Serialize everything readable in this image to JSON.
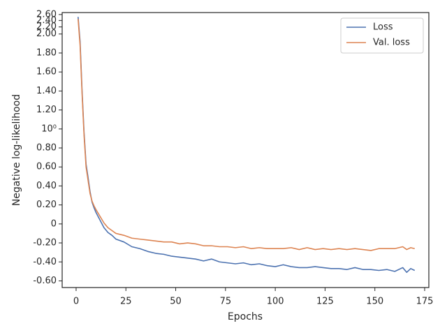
{
  "chart_data": {
    "type": "line",
    "xlabel": "Epochs",
    "ylabel": "Negative log-likelihood",
    "x": [
      1,
      2,
      3,
      4,
      5,
      6,
      7,
      8,
      9,
      10,
      12,
      14,
      16,
      18,
      20,
      24,
      28,
      32,
      36,
      40,
      44,
      48,
      52,
      56,
      60,
      64,
      68,
      72,
      76,
      80,
      84,
      88,
      92,
      96,
      100,
      104,
      108,
      112,
      116,
      120,
      124,
      128,
      132,
      136,
      140,
      144,
      148,
      152,
      156,
      160,
      164,
      166,
      168,
      170
    ],
    "series": [
      {
        "name": "Loss",
        "color": "#4c72b0",
        "values": [
          2.52,
          1.92,
          1.4,
          0.96,
          0.63,
          0.49,
          0.34,
          0.23,
          0.17,
          0.12,
          0.04,
          -0.04,
          -0.09,
          -0.12,
          -0.16,
          -0.19,
          -0.24,
          -0.26,
          -0.29,
          -0.31,
          -0.32,
          -0.34,
          -0.35,
          -0.36,
          -0.37,
          -0.39,
          -0.37,
          -0.4,
          -0.41,
          -0.42,
          -0.41,
          -0.43,
          -0.42,
          -0.44,
          -0.45,
          -0.43,
          -0.45,
          -0.46,
          -0.46,
          -0.45,
          -0.46,
          -0.47,
          -0.47,
          -0.48,
          -0.46,
          -0.48,
          -0.48,
          -0.49,
          -0.48,
          -0.5,
          -0.46,
          -0.51,
          -0.47,
          -0.49
        ]
      },
      {
        "name": "Val. loss",
        "color": "#dd8452",
        "values": [
          2.45,
          1.88,
          1.37,
          0.93,
          0.6,
          0.46,
          0.32,
          0.24,
          0.19,
          0.15,
          0.08,
          0.01,
          -0.04,
          -0.07,
          -0.1,
          -0.12,
          -0.15,
          -0.16,
          -0.17,
          -0.18,
          -0.19,
          -0.19,
          -0.21,
          -0.2,
          -0.21,
          -0.23,
          -0.23,
          -0.24,
          -0.24,
          -0.25,
          -0.24,
          -0.26,
          -0.25,
          -0.26,
          -0.26,
          -0.26,
          -0.25,
          -0.27,
          -0.25,
          -0.27,
          -0.26,
          -0.27,
          -0.26,
          -0.27,
          -0.26,
          -0.27,
          -0.28,
          -0.26,
          -0.26,
          -0.26,
          -0.24,
          -0.27,
          -0.25,
          -0.26
        ]
      }
    ],
    "xlim": [
      -7.0,
      177.1
    ],
    "xticks": [
      0,
      25,
      50,
      75,
      100,
      125,
      150,
      175
    ],
    "ylim": [
      -0.67,
      2.67
    ],
    "yscale": "symlog",
    "linthresh": 2,
    "linscale": 1,
    "yticks": [
      {
        "value": -0.6,
        "label": "-0.60"
      },
      {
        "value": -0.4,
        "label": "-0.40"
      },
      {
        "value": -0.2,
        "label": "-0.20"
      },
      0,
      {
        "value": 0.2,
        "label": "0.20"
      },
      {
        "value": 0.4,
        "label": "0.40"
      },
      {
        "value": 0.6,
        "label": "0.60"
      },
      {
        "value": 0.8,
        "label": "0.80"
      },
      {
        "value": 1,
        "label": "10⁰"
      },
      {
        "value": 1.2,
        "label": "1.20"
      },
      {
        "value": 1.4,
        "label": "1.40"
      },
      {
        "value": 1.6,
        "label": "1.60"
      },
      {
        "value": 1.8,
        "label": "1.80"
      },
      {
        "value": 2,
        "label": "2.00"
      },
      {
        "value": 2.2,
        "label": "2.20"
      },
      {
        "value": 2.4,
        "label": "2.40"
      },
      {
        "value": 2.6,
        "label": "2.60"
      }
    ],
    "grid": false,
    "legend": "upper right"
  }
}
